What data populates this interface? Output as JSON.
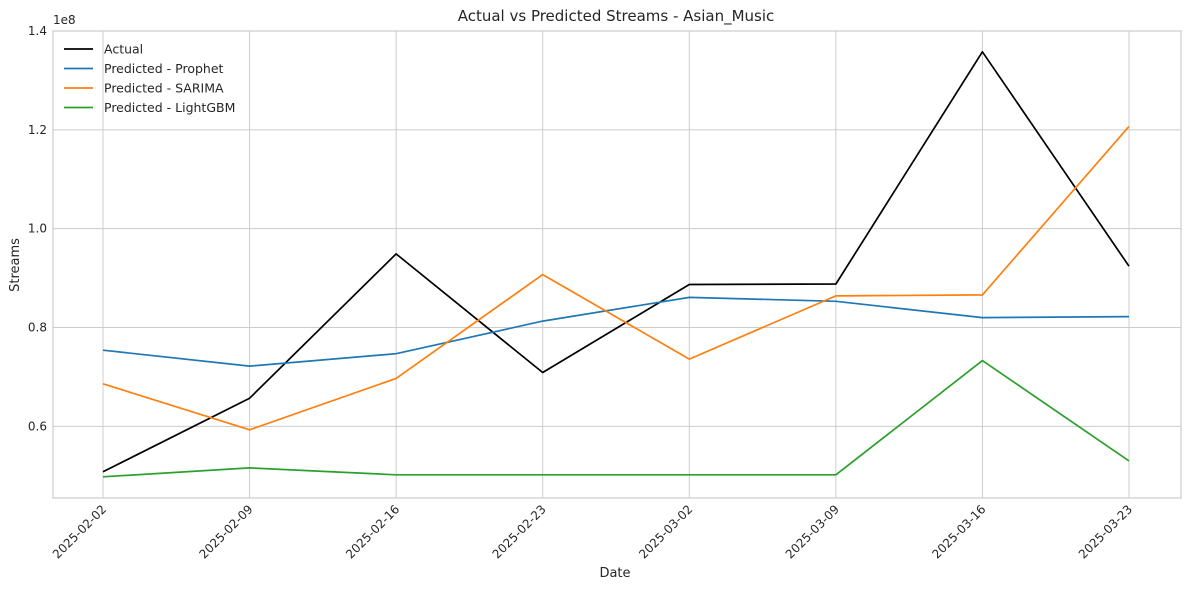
{
  "chart_data": {
    "type": "line",
    "title": "Actual vs Predicted Streams - Asian_Music",
    "xlabel": "Date",
    "ylabel": "Streams",
    "y_offset_label": "1e8",
    "x": [
      "2025-02-02",
      "2025-02-09",
      "2025-02-16",
      "2025-02-23",
      "2025-03-02",
      "2025-03-09",
      "2025-03-16",
      "2025-03-23"
    ],
    "y_ticks": [
      0.6,
      0.8,
      1.0,
      1.2,
      1.4
    ],
    "y_tick_labels": [
      "0.6",
      "0.8",
      "1.0",
      "1.2",
      "1.4"
    ],
    "ylim": [
      0.455,
      1.4
    ],
    "y_unit_multiplier": 100000000,
    "grid": true,
    "legend_position": "top-left",
    "series": [
      {
        "name": "Actual",
        "color": "#000000",
        "values": [
          0.508,
          0.657,
          0.949,
          0.709,
          0.887,
          0.888,
          1.358,
          0.924
        ]
      },
      {
        "name": "Predicted - Prophet",
        "color": "#1f77b4",
        "values": [
          0.754,
          0.722,
          0.747,
          0.813,
          0.861,
          0.853,
          0.82,
          0.822
        ]
      },
      {
        "name": "Predicted - SARIMA",
        "color": "#ff7f0e",
        "values": [
          0.686,
          0.593,
          0.697,
          0.907,
          0.736,
          0.864,
          0.866,
          1.207
        ]
      },
      {
        "name": "Predicted - LightGBM",
        "color": "#2ca02c",
        "values": [
          0.498,
          0.516,
          0.502,
          0.502,
          0.502,
          0.502,
          0.733,
          0.53
        ]
      }
    ]
  }
}
